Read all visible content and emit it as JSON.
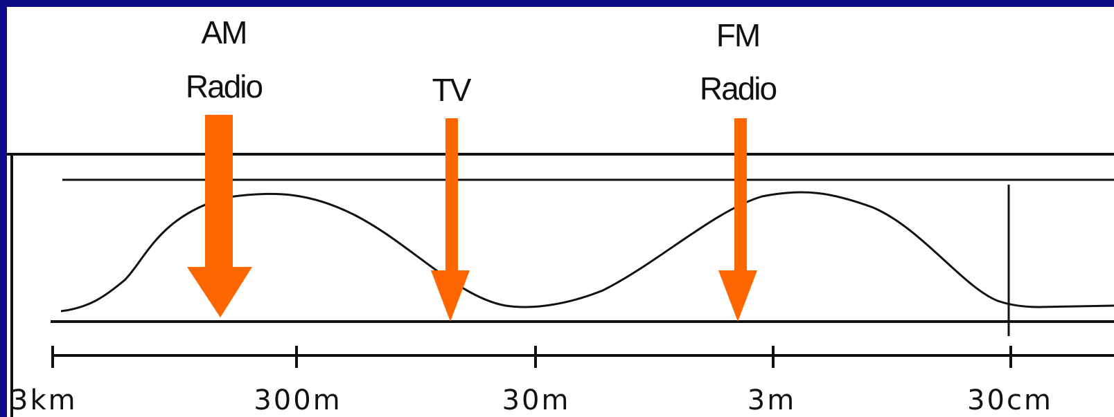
{
  "labels": {
    "am": {
      "line1": "AM",
      "line2": "Radio"
    },
    "tv": {
      "line1": "TV"
    },
    "fm": {
      "line1": "FM",
      "line2": "Radio"
    }
  },
  "scale": {
    "ticks": [
      "3km",
      "300m",
      "30m",
      "3m",
      "30cm"
    ]
  },
  "colors": {
    "background": "#0b0b85",
    "panel": "#ffffff",
    "arrow": "#ff6600",
    "line": "#111111"
  }
}
